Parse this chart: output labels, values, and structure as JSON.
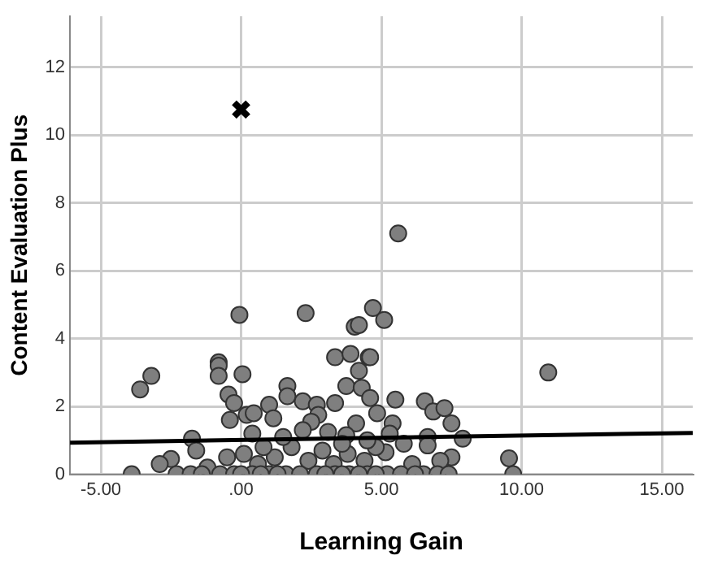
{
  "chart_data": {
    "type": "scatter",
    "xlabel": "Learning Gain",
    "ylabel": "Content Evaluation Plus",
    "xlim": [
      -6.1,
      16.1
    ],
    "ylim": [
      0,
      13.5
    ],
    "xticks": [
      {
        "value": -5,
        "label": "-5.00"
      },
      {
        "value": 0,
        "label": ".00"
      },
      {
        "value": 5,
        "label": "5.00"
      },
      {
        "value": 10,
        "label": "10.00"
      },
      {
        "value": 15,
        "label": "15.00"
      }
    ],
    "yticks": [
      0,
      2,
      4,
      6,
      8,
      10,
      12
    ],
    "grid": true,
    "legend": false,
    "series": [
      {
        "marker": "circle",
        "color": "#7f7f7f",
        "x": [
          -0.06,
          2.3,
          -3.6,
          -3.2,
          -0.8,
          -0.8,
          -0.8,
          0.05,
          -0.45,
          -0.25,
          -0.4,
          0.2,
          0.45,
          0.4,
          1.0,
          1.15,
          1.65,
          1.65,
          2.2,
          2.7,
          2.75,
          2.5,
          3.1,
          3.35,
          3.35,
          3.9,
          4.55,
          4.2,
          3.75,
          4.3,
          4.05,
          4.2,
          4.7,
          4.1,
          3.75,
          -1.75,
          -1.6,
          -2.5,
          -2.9,
          5.6,
          5.1,
          4.6,
          10.95,
          5.5,
          4.6,
          6.55,
          6.85,
          7.25,
          7.5,
          7.9,
          4.85,
          5.4,
          5.3,
          6.65,
          6.65,
          7.5,
          7.1,
          5.15,
          9.55,
          -0.5,
          0.1,
          0.6,
          1.2,
          1.8,
          2.4,
          2.9,
          3.3,
          3.8,
          4.4,
          4.8,
          1.5,
          2.2,
          3.6,
          4.5,
          0.8,
          -1.2,
          6.1,
          5.8,
          -3.9,
          -2.3,
          -1.8,
          -1.4,
          -0.75,
          -0.25,
          0.4,
          1.0,
          1.6,
          2.1,
          2.7,
          3.35,
          3.85,
          4.5,
          5.2,
          5.7,
          6.5,
          7.0,
          7.4,
          9.7,
          0.0,
          0.7,
          1.3,
          3.0,
          3.6,
          4.2,
          4.8,
          6.2
        ],
        "values": [
          4.7,
          4.75,
          2.5,
          2.9,
          3.3,
          3.2,
          2.9,
          2.95,
          2.35,
          2.1,
          1.6,
          1.75,
          1.8,
          1.2,
          2.05,
          1.65,
          2.6,
          2.3,
          2.15,
          2.05,
          1.75,
          1.55,
          1.25,
          2.1,
          3.45,
          3.55,
          3.45,
          3.05,
          2.6,
          2.55,
          4.35,
          4.4,
          4.9,
          1.5,
          1.15,
          1.05,
          0.7,
          0.45,
          0.3,
          7.1,
          4.55,
          3.45,
          3.0,
          2.2,
          2.25,
          2.15,
          1.85,
          1.95,
          1.5,
          1.05,
          1.8,
          1.5,
          1.2,
          1.1,
          0.85,
          0.5,
          0.4,
          0.65,
          0.47,
          0.5,
          0.6,
          0.3,
          0.5,
          0.8,
          0.4,
          0.7,
          0.3,
          0.6,
          0.4,
          0.8,
          1.1,
          1.3,
          0.9,
          1.0,
          0.8,
          0.2,
          0.3,
          0.9,
          0,
          0,
          0,
          0,
          0,
          0,
          0,
          0,
          0,
          0,
          0,
          0,
          0,
          0,
          0,
          0,
          0,
          0,
          0,
          0,
          0,
          0,
          0,
          0,
          0,
          0,
          0,
          0
        ]
      },
      {
        "marker": "cross",
        "color": "#000000",
        "x": [
          0
        ],
        "values": [
          10.75
        ]
      },
      {
        "type": "line",
        "marker": "none",
        "color": "#000000",
        "x": [
          -6.1,
          16.1
        ],
        "values": [
          0.93,
          1.22
        ]
      }
    ]
  }
}
